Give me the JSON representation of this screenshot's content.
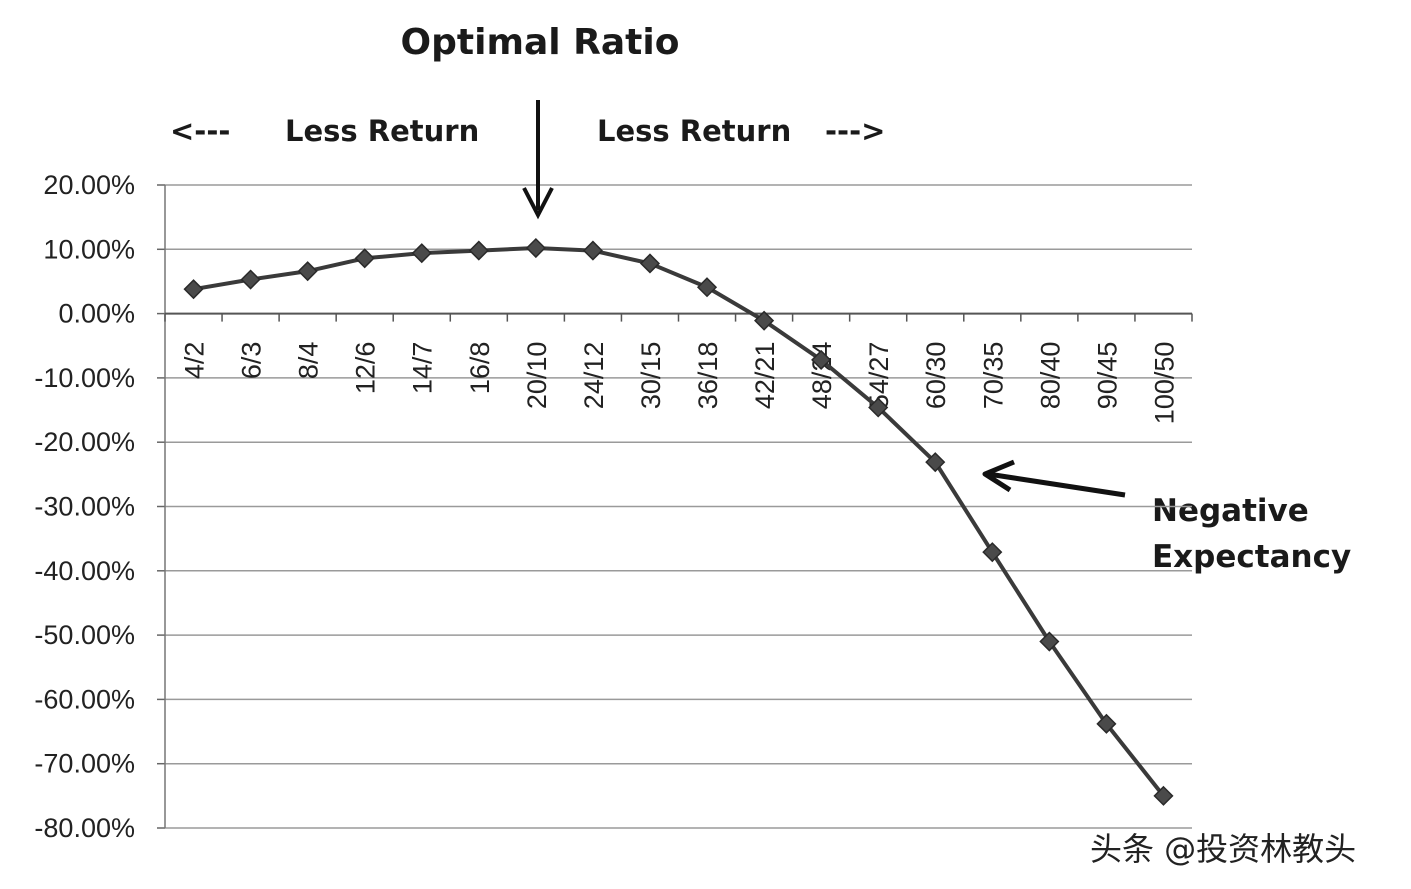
{
  "chart_data": {
    "type": "line",
    "title": "Optimal Ratio",
    "xlabel": "",
    "ylabel": "",
    "categories": [
      "4/2",
      "6/3",
      "8/4",
      "12/6",
      "14/7",
      "16/8",
      "20/10",
      "24/12",
      "30/15",
      "36/18",
      "42/21",
      "48/24",
      "54/27",
      "60/30",
      "70/35",
      "80/40",
      "90/45",
      "100/50"
    ],
    "series": [
      {
        "values": [
          3.8,
          5.3,
          6.6,
          8.6,
          9.4,
          9.8,
          10.2,
          9.8,
          7.8,
          4.1,
          -1.1,
          -7.2,
          -14.6,
          -23.1,
          -37.1,
          -51.0,
          -63.8,
          -75.0
        ]
      }
    ],
    "ylim": [
      -80,
      20
    ],
    "yticks": [
      20,
      10,
      0,
      -10,
      -20,
      -30,
      -40,
      -50,
      -60,
      -70,
      -80
    ],
    "ytick_labels": [
      "20.00%",
      "10.00%",
      "0.00%",
      "-10.00%",
      "-20.00%",
      "-30.00%",
      "-40.00%",
      "-50.00%",
      "-60.00%",
      "-70.00%",
      "-80.00%"
    ],
    "grid": true,
    "marker": "diamond",
    "line_color": "#3a3a3a",
    "annotations": {
      "left_arrow": "<---",
      "left_label": "Less Return",
      "right_label": "Less Return",
      "right_arrow": "--->",
      "negative_line1": "Negative",
      "negative_line2": "Expectancy"
    }
  },
  "watermark": "头条 @投资林教头"
}
